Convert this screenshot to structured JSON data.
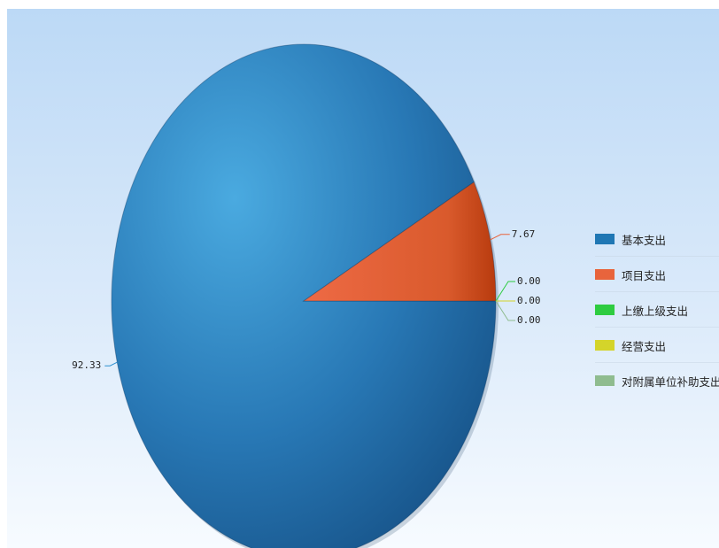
{
  "chart_data": {
    "type": "pie",
    "series": [
      {
        "name": "基本支出",
        "value": 92.33,
        "label": "92.33",
        "color": "#1f77b4"
      },
      {
        "name": "项目支出",
        "value": 7.67,
        "label": "7.67",
        "color": "#e8643c"
      },
      {
        "name": "上缴上级支出",
        "value": 0.0,
        "label": "0.00",
        "color": "#2ecc40"
      },
      {
        "name": "经营支出",
        "value": 0.0,
        "label": "0.00",
        "color": "#d4d42a"
      },
      {
        "name": "对附属单位补助支出",
        "value": 0.0,
        "label": "0.00",
        "color": "#8fbc8f"
      }
    ],
    "legend_position": "right",
    "background": "light-blue-gradient"
  }
}
